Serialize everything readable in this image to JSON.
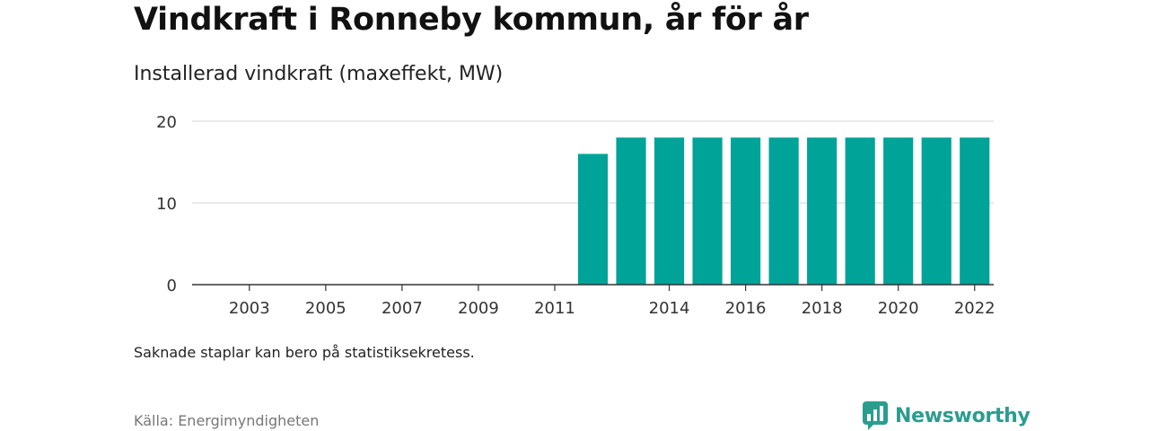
{
  "title": "Vindkraft i Ronneby kommun, år för år",
  "subtitle": "Installerad vindkraft (maxeffekt, MW)",
  "note": "Saknade staplar kan bero på statistiksekretess.",
  "source": "Källa: Energimyndigheten",
  "brand": {
    "name": "Newsworthy",
    "icon": "newsworthy-logo-icon",
    "color": "#2a9d8f"
  },
  "colors": {
    "bar": "#00a398",
    "grid": "#dddddd",
    "axis": "#333333"
  },
  "chart_data": {
    "type": "bar",
    "title": "Vindkraft i Ronneby kommun, år för år",
    "subtitle": "Installerad vindkraft (maxeffekt, MW)",
    "xlabel": "",
    "ylabel": "",
    "categories": [
      "2002",
      "2003",
      "2004",
      "2005",
      "2006",
      "2007",
      "2008",
      "2009",
      "2010",
      "2011",
      "2012",
      "2013",
      "2014",
      "2015",
      "2016",
      "2017",
      "2018",
      "2019",
      "2020",
      "2021",
      "2022"
    ],
    "values": [
      null,
      null,
      null,
      null,
      null,
      null,
      null,
      null,
      null,
      null,
      16,
      18,
      18,
      18,
      18,
      18,
      18,
      18,
      18,
      18,
      18
    ],
    "x_tick_labels": [
      "2003",
      "2005",
      "2007",
      "2009",
      "2011",
      "2014",
      "2016",
      "2018",
      "2020",
      "2022"
    ],
    "y_ticks": [
      0,
      10,
      20
    ],
    "ylim": [
      0,
      20
    ],
    "grid": true,
    "legend": "none"
  }
}
